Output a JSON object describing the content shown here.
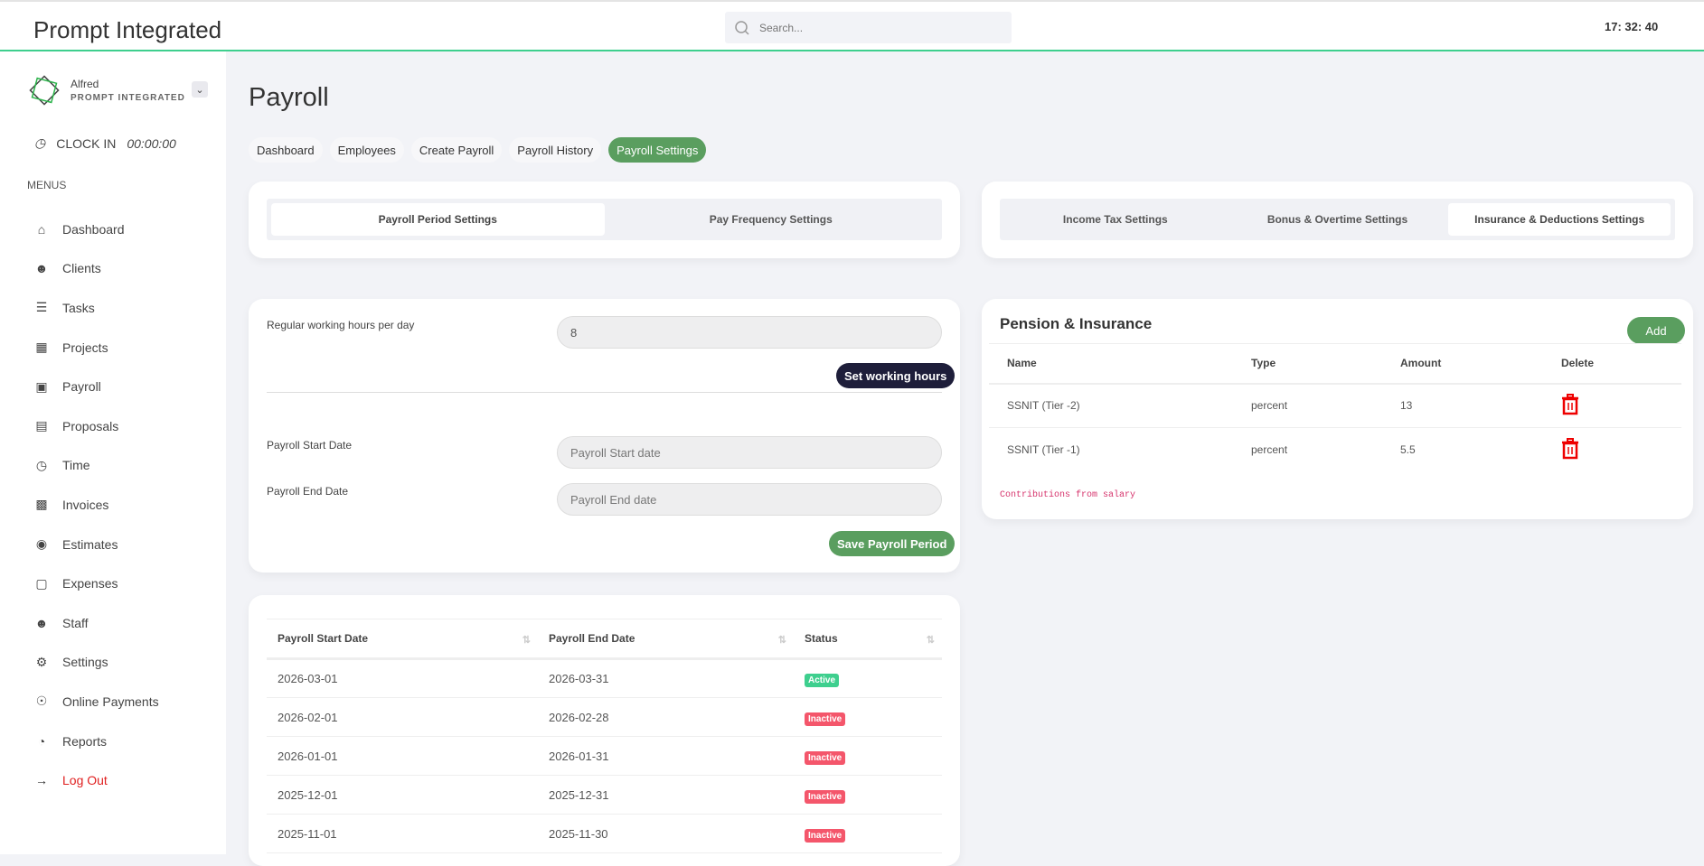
{
  "header": {
    "title": "Prompt Integrated",
    "search_placeholder": "Search...",
    "time": "17: 32: 40"
  },
  "user": {
    "name": "Alfred",
    "org": "PROMPT INTEGRATED"
  },
  "clock": {
    "label": "CLOCK IN",
    "time": "00:00:00"
  },
  "sidebar": {
    "section": "MENUS",
    "items": [
      {
        "label": "Dashboard",
        "icon": "home-icon"
      },
      {
        "label": "Clients",
        "icon": "users-icon"
      },
      {
        "label": "Tasks",
        "icon": "sliders-icon"
      },
      {
        "label": "Projects",
        "icon": "projects-icon"
      },
      {
        "label": "Payroll",
        "icon": "briefcase-icon"
      },
      {
        "label": "Proposals",
        "icon": "document-icon"
      },
      {
        "label": "Time",
        "icon": "clock-icon"
      },
      {
        "label": "Invoices",
        "icon": "invoice-icon"
      },
      {
        "label": "Estimates",
        "icon": "camera-icon"
      },
      {
        "label": "Expenses",
        "icon": "wallet-icon"
      },
      {
        "label": "Staff",
        "icon": "users-icon"
      },
      {
        "label": "Settings",
        "icon": "gear-icon"
      },
      {
        "label": "Online Payments",
        "icon": "globe-icon"
      },
      {
        "label": "Reports",
        "icon": "pie-chart-icon"
      },
      {
        "label": "Log Out",
        "icon": "logout-icon"
      }
    ]
  },
  "page": {
    "title": "Payroll",
    "tabs": [
      "Dashboard",
      "Employees",
      "Create Payroll",
      "Payroll History",
      "Payroll Settings"
    ],
    "active_tab": "Payroll Settings"
  },
  "left_settings": {
    "tabs": [
      "Payroll Period Settings",
      "Pay Frequency Settings"
    ],
    "active": "Payroll Period Settings"
  },
  "right_settings": {
    "tabs": [
      "Income Tax Settings",
      "Bonus & Overtime Settings",
      "Insurance & Deductions Settings"
    ],
    "active": "Insurance & Deductions Settings"
  },
  "period_form": {
    "hours_label": "Regular working hours per day",
    "hours_value": "8",
    "set_hours_button": "Set working hours",
    "start_label": "Payroll Start Date",
    "start_placeholder": "Payroll Start date",
    "end_label": "Payroll End Date",
    "end_placeholder": "Payroll End date",
    "save_button": "Save Payroll Period"
  },
  "periods_table": {
    "headers": [
      "Payroll Start Date",
      "Payroll End Date",
      "Status"
    ],
    "rows": [
      [
        "2026-03-01",
        "2026-03-31",
        "Active"
      ],
      [
        "2026-02-01",
        "2026-02-28",
        "Inactive"
      ],
      [
        "2026-01-01",
        "2026-01-31",
        "Inactive"
      ],
      [
        "2025-12-01",
        "2025-12-31",
        "Inactive"
      ],
      [
        "2025-11-01",
        "2025-11-30",
        "Inactive"
      ]
    ]
  },
  "insurance": {
    "title": "Pension & Insurance",
    "add_button": "Add",
    "headers": [
      "Name",
      "Type",
      "Amount",
      "Delete"
    ],
    "rows": [
      [
        "SSNIT (Tier -2)",
        "percent",
        "13"
      ],
      [
        "SSNIT (Tier -1)",
        "percent",
        "5.5"
      ]
    ],
    "note": "Contributions from salary"
  },
  "colors": {
    "accent": "#5a9e5f",
    "active": "#3ecf8e",
    "inactive": "#f4566b",
    "delete": "#e00000"
  }
}
